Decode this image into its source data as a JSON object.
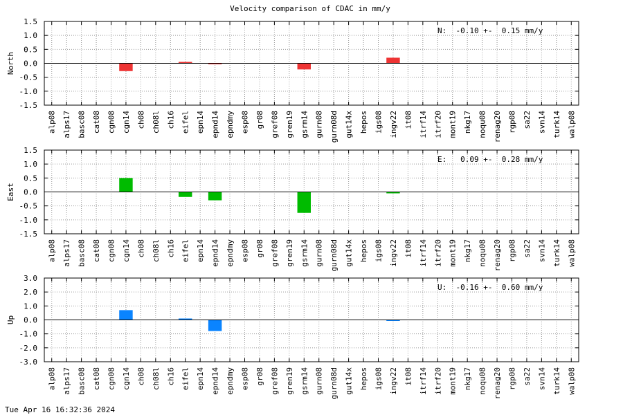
{
  "title": "Velocity comparison of CDAC in mm/y",
  "footer": "Tue Apr 16 16:32:36 2024",
  "chart_data": {
    "type": "bar",
    "categories": [
      "alp08",
      "alps17",
      "basc08",
      "cat08",
      "cgn08",
      "cgn14",
      "ch08",
      "ch08l",
      "ch16",
      "eifel",
      "epn14",
      "epnd14",
      "epndmy",
      "esp08",
      "gr08",
      "gref08",
      "gren19",
      "gsrm14",
      "gurn08",
      "gurn08d",
      "gut14x",
      "hepos",
      "igs08",
      "ingv22",
      "it08",
      "itrf14",
      "itrf20",
      "mont19",
      "nkg17",
      "noqu08",
      "renag20",
      "rgp08",
      "sa22",
      "svn14",
      "turk14",
      "walp08"
    ],
    "panels": [
      {
        "ylabel": "North",
        "stats": "N:  -0.10 +-  0.15 mm/y",
        "color": "#ee3333",
        "ylim": [
          -1.5,
          1.5
        ],
        "yticks": [
          "1.5",
          "1.0",
          "0.5",
          "0.0",
          "-0.5",
          "-1.0",
          "-1.5"
        ],
        "values": [
          0,
          0,
          0,
          0,
          0,
          -0.28,
          0,
          0,
          0,
          0.05,
          0,
          -0.03,
          0,
          0,
          0,
          0,
          0,
          -0.22,
          0,
          0,
          0,
          0,
          0,
          0.2,
          0,
          0,
          0,
          0,
          0,
          0,
          0,
          0,
          0,
          0,
          0,
          0
        ]
      },
      {
        "ylabel": "East",
        "stats": "E:   0.09 +-  0.28 mm/y",
        "color": "#00bb00",
        "ylim": [
          -1.5,
          1.5
        ],
        "yticks": [
          "1.5",
          "1.0",
          "0.5",
          "0.0",
          "-0.5",
          "-1.0",
          "-1.5"
        ],
        "values": [
          0,
          0,
          0,
          0,
          0,
          0.5,
          0,
          0,
          0,
          -0.18,
          0,
          -0.3,
          0,
          0,
          0,
          0,
          0,
          -0.75,
          0,
          0,
          0,
          0,
          0,
          -0.05,
          0,
          0,
          0,
          0,
          0,
          0,
          0,
          0,
          0,
          0,
          0,
          0
        ]
      },
      {
        "ylabel": "Up",
        "stats": "U:  -0.16 +-  0.60 mm/y",
        "color": "#0a84ff",
        "ylim": [
          -3.0,
          3.0
        ],
        "yticks": [
          "3.0",
          "2.0",
          "1.0",
          "0.0",
          "-1.0",
          "-2.0",
          "-3.0"
        ],
        "values": [
          0,
          0,
          0,
          0,
          0,
          0.7,
          0,
          0,
          0,
          0.1,
          0,
          -0.8,
          0,
          0,
          0,
          0,
          0,
          0,
          0,
          0,
          0,
          0,
          0,
          -0.07,
          0,
          0,
          0,
          0,
          0,
          0,
          0,
          0,
          0,
          0,
          0,
          0
        ]
      }
    ]
  }
}
